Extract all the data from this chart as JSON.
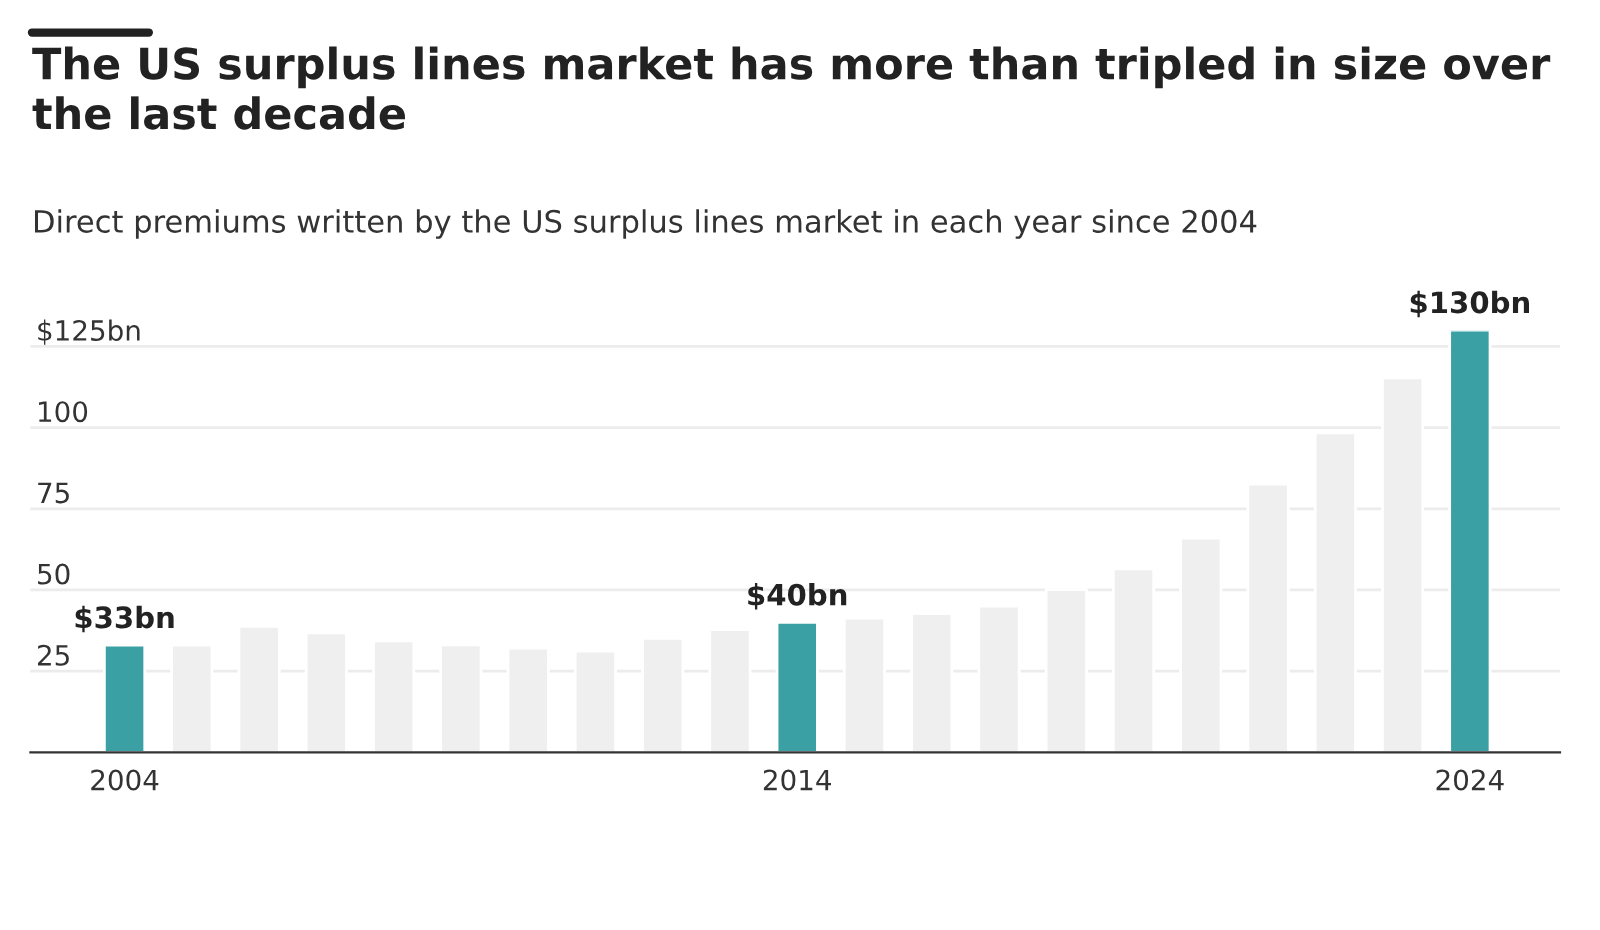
{
  "chart_data": {
    "type": "bar",
    "title": "The US surplus lines market has more than tripled in size over the last decade",
    "subtitle": "Direct premiums written by the US surplus lines market in each year since 2004",
    "categories": [
      "2004",
      null,
      null,
      null,
      null,
      null,
      null,
      null,
      null,
      null,
      "2014",
      null,
      null,
      null,
      null,
      null,
      null,
      null,
      null,
      null,
      "2024"
    ],
    "values": [
      33,
      33,
      38.8,
      36.8,
      34.3,
      33.1,
      32.1,
      31.2,
      35.1,
      37.8,
      40,
      41.3,
      42.7,
      45,
      50.1,
      56.5,
      66,
      82.6,
      98.4,
      115.3,
      130
    ],
    "colors": [
      "#3aa0a4",
      "#efefef",
      "#efefef",
      "#efefef",
      "#efefef",
      "#efefef",
      "#efefef",
      "#efefef",
      "#efefef",
      "#efefef",
      "#3aa0a4",
      "#efefef",
      "#efefef",
      "#efefef",
      "#efefef",
      "#efefef",
      "#efefef",
      "#efefef",
      "#efefef",
      "#efefef",
      "#3aa0a4"
    ],
    "value_labels": [
      "$33bn",
      null,
      null,
      null,
      null,
      null,
      null,
      null,
      null,
      null,
      "$40bn",
      null,
      null,
      null,
      null,
      null,
      null,
      null,
      null,
      null,
      "$130bn"
    ],
    "ylim": [
      0,
      130
    ],
    "yticks": [
      {
        "value": 25,
        "label": "25"
      },
      {
        "value": 50,
        "label": "50"
      },
      {
        "value": 75,
        "label": "75"
      },
      {
        "value": 100,
        "label": "100"
      },
      {
        "value": 125,
        "label": "$125bn"
      }
    ],
    "grid": "y",
    "legend": false
  }
}
